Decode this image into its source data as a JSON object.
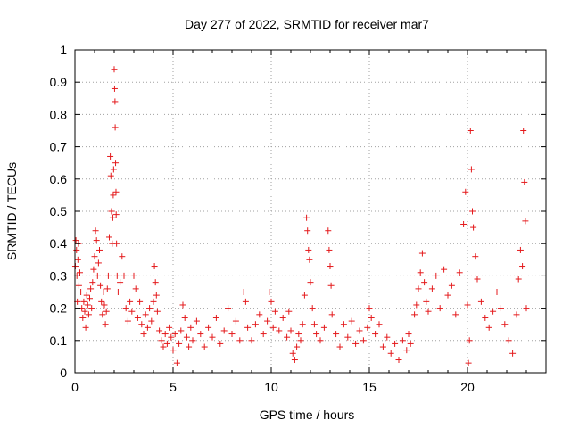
{
  "chart_data": {
    "type": "scatter",
    "title": "Day 277 of 2022, SRMTID for receiver mar7",
    "xlabel": "GPS time / hours",
    "ylabel": "SRMTID / TECUs",
    "xlim": [
      0,
      24
    ],
    "ylim": [
      0,
      1
    ],
    "x_ticks": [
      0,
      5,
      10,
      15,
      20
    ],
    "x_tick_labels": [
      "0",
      "5",
      "10",
      "15",
      "20"
    ],
    "y_ticks": [
      0,
      0.1,
      0.2,
      0.3,
      0.4,
      0.5,
      0.6,
      0.7,
      0.8,
      0.9,
      1
    ],
    "y_tick_labels": [
      "0",
      "0.1",
      "0.2",
      "0.3",
      "0.4",
      "0.5",
      "0.6",
      "0.7",
      "0.8",
      "0.9",
      "1"
    ],
    "grid": true,
    "marker": "+",
    "color": "#e41a1c",
    "series": [
      {
        "name": "SRMTID",
        "points": [
          [
            0.02,
            0.33
          ],
          [
            0.05,
            0.41
          ],
          [
            0.08,
            0.38
          ],
          [
            0.1,
            0.3
          ],
          [
            0.12,
            0.22
          ],
          [
            0.15,
            0.35
          ],
          [
            0.18,
            0.4
          ],
          [
            0.2,
            0.27
          ],
          [
            0.25,
            0.31
          ],
          [
            0.3,
            0.25
          ],
          [
            0.35,
            0.2
          ],
          [
            0.4,
            0.17
          ],
          [
            0.45,
            0.22
          ],
          [
            0.5,
            0.19
          ],
          [
            0.55,
            0.14
          ],
          [
            0.6,
            0.24
          ],
          [
            0.65,
            0.21
          ],
          [
            0.7,
            0.18
          ],
          [
            0.75,
            0.23
          ],
          [
            0.8,
            0.26
          ],
          [
            0.85,
            0.2
          ],
          [
            0.9,
            0.28
          ],
          [
            0.95,
            0.32
          ],
          [
            1.0,
            0.36
          ],
          [
            1.05,
            0.44
          ],
          [
            1.1,
            0.41
          ],
          [
            1.15,
            0.3
          ],
          [
            1.2,
            0.34
          ],
          [
            1.25,
            0.38
          ],
          [
            1.3,
            0.27
          ],
          [
            1.35,
            0.22
          ],
          [
            1.4,
            0.18
          ],
          [
            1.45,
            0.25
          ],
          [
            1.5,
            0.21
          ],
          [
            1.55,
            0.15
          ],
          [
            1.6,
            0.19
          ],
          [
            1.65,
            0.26
          ],
          [
            1.7,
            0.3
          ],
          [
            1.75,
            0.42
          ],
          [
            1.8,
            0.67
          ],
          [
            1.83,
            0.61
          ],
          [
            1.86,
            0.5
          ],
          [
            1.9,
            0.4
          ],
          [
            1.93,
            0.48
          ],
          [
            1.95,
            0.55
          ],
          [
            1.97,
            0.63
          ],
          [
            2.0,
            0.94
          ],
          [
            2.02,
            0.88
          ],
          [
            2.04,
            0.84
          ],
          [
            2.05,
            0.76
          ],
          [
            2.07,
            0.65
          ],
          [
            2.09,
            0.56
          ],
          [
            2.1,
            0.49
          ],
          [
            2.12,
            0.4
          ],
          [
            2.15,
            0.3
          ],
          [
            2.2,
            0.25
          ],
          [
            2.3,
            0.28
          ],
          [
            2.4,
            0.36
          ],
          [
            2.5,
            0.3
          ],
          [
            2.6,
            0.2
          ],
          [
            2.7,
            0.16
          ],
          [
            2.8,
            0.22
          ],
          [
            2.9,
            0.19
          ],
          [
            3.0,
            0.3
          ],
          [
            3.1,
            0.26
          ],
          [
            3.2,
            0.17
          ],
          [
            3.3,
            0.22
          ],
          [
            3.4,
            0.15
          ],
          [
            3.5,
            0.12
          ],
          [
            3.6,
            0.18
          ],
          [
            3.7,
            0.14
          ],
          [
            3.8,
            0.2
          ],
          [
            3.9,
            0.16
          ],
          [
            4.0,
            0.22
          ],
          [
            4.05,
            0.33
          ],
          [
            4.1,
            0.28
          ],
          [
            4.15,
            0.24
          ],
          [
            4.2,
            0.19
          ],
          [
            4.3,
            0.13
          ],
          [
            4.4,
            0.1
          ],
          [
            4.5,
            0.08
          ],
          [
            4.6,
            0.12
          ],
          [
            4.7,
            0.09
          ],
          [
            4.8,
            0.14
          ],
          [
            4.9,
            0.11
          ],
          [
            5.0,
            0.07
          ],
          [
            5.1,
            0.12
          ],
          [
            5.2,
            0.03
          ],
          [
            5.3,
            0.09
          ],
          [
            5.4,
            0.13
          ],
          [
            5.5,
            0.21
          ],
          [
            5.6,
            0.17
          ],
          [
            5.7,
            0.11
          ],
          [
            5.8,
            0.08
          ],
          [
            5.9,
            0.14
          ],
          [
            6.0,
            0.1
          ],
          [
            6.2,
            0.16
          ],
          [
            6.4,
            0.12
          ],
          [
            6.6,
            0.08
          ],
          [
            6.8,
            0.14
          ],
          [
            7.0,
            0.11
          ],
          [
            7.2,
            0.17
          ],
          [
            7.4,
            0.09
          ],
          [
            7.6,
            0.13
          ],
          [
            7.8,
            0.2
          ],
          [
            8.0,
            0.12
          ],
          [
            8.2,
            0.16
          ],
          [
            8.4,
            0.1
          ],
          [
            8.6,
            0.25
          ],
          [
            8.7,
            0.22
          ],
          [
            8.8,
            0.14
          ],
          [
            9.0,
            0.1
          ],
          [
            9.2,
            0.15
          ],
          [
            9.4,
            0.18
          ],
          [
            9.6,
            0.12
          ],
          [
            9.8,
            0.16
          ],
          [
            9.9,
            0.25
          ],
          [
            10.0,
            0.22
          ],
          [
            10.1,
            0.14
          ],
          [
            10.2,
            0.19
          ],
          [
            10.4,
            0.13
          ],
          [
            10.6,
            0.17
          ],
          [
            10.8,
            0.11
          ],
          [
            10.9,
            0.19
          ],
          [
            11.0,
            0.13
          ],
          [
            11.1,
            0.06
          ],
          [
            11.2,
            0.04
          ],
          [
            11.3,
            0.08
          ],
          [
            11.4,
            0.12
          ],
          [
            11.5,
            0.1
          ],
          [
            11.6,
            0.15
          ],
          [
            11.7,
            0.24
          ],
          [
            11.8,
            0.48
          ],
          [
            11.85,
            0.44
          ],
          [
            11.9,
            0.38
          ],
          [
            11.95,
            0.35
          ],
          [
            12.0,
            0.28
          ],
          [
            12.1,
            0.2
          ],
          [
            12.2,
            0.15
          ],
          [
            12.3,
            0.12
          ],
          [
            12.5,
            0.1
          ],
          [
            12.7,
            0.14
          ],
          [
            12.9,
            0.44
          ],
          [
            12.95,
            0.38
          ],
          [
            13.0,
            0.33
          ],
          [
            13.05,
            0.27
          ],
          [
            13.1,
            0.18
          ],
          [
            13.3,
            0.12
          ],
          [
            13.5,
            0.08
          ],
          [
            13.7,
            0.15
          ],
          [
            13.9,
            0.11
          ],
          [
            14.1,
            0.16
          ],
          [
            14.3,
            0.09
          ],
          [
            14.5,
            0.13
          ],
          [
            14.7,
            0.1
          ],
          [
            14.9,
            0.14
          ],
          [
            15.0,
            0.2
          ],
          [
            15.1,
            0.17
          ],
          [
            15.3,
            0.12
          ],
          [
            15.5,
            0.15
          ],
          [
            15.7,
            0.08
          ],
          [
            15.9,
            0.11
          ],
          [
            16.1,
            0.06
          ],
          [
            16.3,
            0.09
          ],
          [
            16.5,
            0.04
          ],
          [
            16.7,
            0.1
          ],
          [
            16.9,
            0.07
          ],
          [
            17.0,
            0.12
          ],
          [
            17.1,
            0.09
          ],
          [
            17.3,
            0.18
          ],
          [
            17.4,
            0.21
          ],
          [
            17.5,
            0.26
          ],
          [
            17.6,
            0.31
          ],
          [
            17.7,
            0.37
          ],
          [
            17.8,
            0.28
          ],
          [
            17.9,
            0.22
          ],
          [
            18.0,
            0.19
          ],
          [
            18.2,
            0.26
          ],
          [
            18.4,
            0.3
          ],
          [
            18.6,
            0.2
          ],
          [
            18.8,
            0.32
          ],
          [
            19.0,
            0.24
          ],
          [
            19.2,
            0.27
          ],
          [
            19.4,
            0.18
          ],
          [
            19.6,
            0.31
          ],
          [
            19.8,
            0.46
          ],
          [
            19.9,
            0.56
          ],
          [
            20.0,
            0.21
          ],
          [
            20.05,
            0.03
          ],
          [
            20.1,
            0.1
          ],
          [
            20.15,
            0.75
          ],
          [
            20.2,
            0.63
          ],
          [
            20.25,
            0.5
          ],
          [
            20.3,
            0.45
          ],
          [
            20.4,
            0.36
          ],
          [
            20.5,
            0.29
          ],
          [
            20.7,
            0.22
          ],
          [
            20.9,
            0.17
          ],
          [
            21.1,
            0.14
          ],
          [
            21.3,
            0.19
          ],
          [
            21.5,
            0.25
          ],
          [
            21.7,
            0.2
          ],
          [
            21.9,
            0.15
          ],
          [
            22.1,
            0.1
          ],
          [
            22.3,
            0.06
          ],
          [
            22.5,
            0.18
          ],
          [
            22.6,
            0.29
          ],
          [
            22.7,
            0.38
          ],
          [
            22.8,
            0.33
          ],
          [
            22.85,
            0.75
          ],
          [
            22.9,
            0.59
          ],
          [
            22.95,
            0.47
          ],
          [
            23.0,
            0.2
          ]
        ]
      }
    ]
  }
}
